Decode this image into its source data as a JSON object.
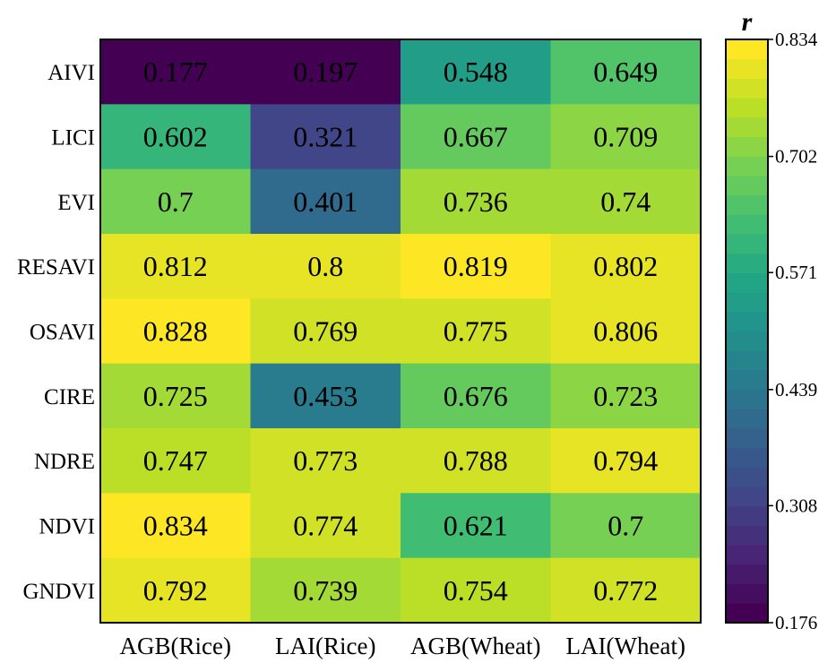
{
  "chart_data": {
    "type": "heatmap",
    "rows": [
      "AIVI",
      "LICI",
      "EVI",
      "RESAVI",
      "OSAVI",
      "CIRE",
      "NDRE",
      "NDVI",
      "GNDVI"
    ],
    "columns": [
      "AGB(Rice)",
      "LAI(Rice)",
      "AGB(Wheat)",
      "LAI(Wheat)"
    ],
    "values": [
      [
        0.177,
        0.197,
        0.548,
        0.649
      ],
      [
        0.602,
        0.321,
        0.667,
        0.709
      ],
      [
        0.7,
        0.401,
        0.736,
        0.74
      ],
      [
        0.812,
        0.8,
        0.819,
        0.802
      ],
      [
        0.828,
        0.769,
        0.775,
        0.806
      ],
      [
        0.725,
        0.453,
        0.676,
        0.723
      ],
      [
        0.747,
        0.773,
        0.788,
        0.794
      ],
      [
        0.834,
        0.774,
        0.621,
        0.7
      ],
      [
        0.792,
        0.739,
        0.754,
        0.772
      ]
    ],
    "value_labels": [
      [
        "0.177",
        "0.197",
        "0.548",
        "0.649"
      ],
      [
        "0.602",
        "0.321",
        "0.667",
        "0.709"
      ],
      [
        "0.7",
        "0.401",
        "0.736",
        "0.74"
      ],
      [
        "0.812",
        "0.8",
        "0.819",
        "0.802"
      ],
      [
        "0.828",
        "0.769",
        "0.775",
        "0.806"
      ],
      [
        "0.725",
        "0.453",
        "0.676",
        "0.723"
      ],
      [
        "0.747",
        "0.773",
        "0.788",
        "0.794"
      ],
      [
        "0.834",
        "0.774",
        "0.621",
        "0.7"
      ],
      [
        "0.792",
        "0.739",
        "0.754",
        "0.772"
      ]
    ],
    "colorbar": {
      "title": "r",
      "min": 0.176,
      "max": 0.834,
      "ticks": [
        0.834,
        0.702,
        0.571,
        0.439,
        0.308,
        0.176
      ],
      "tick_labels": [
        "0.834",
        "0.702",
        "0.571",
        "0.439",
        "0.308",
        "0.176"
      ],
      "steps": 30,
      "colormap": "viridis"
    }
  }
}
